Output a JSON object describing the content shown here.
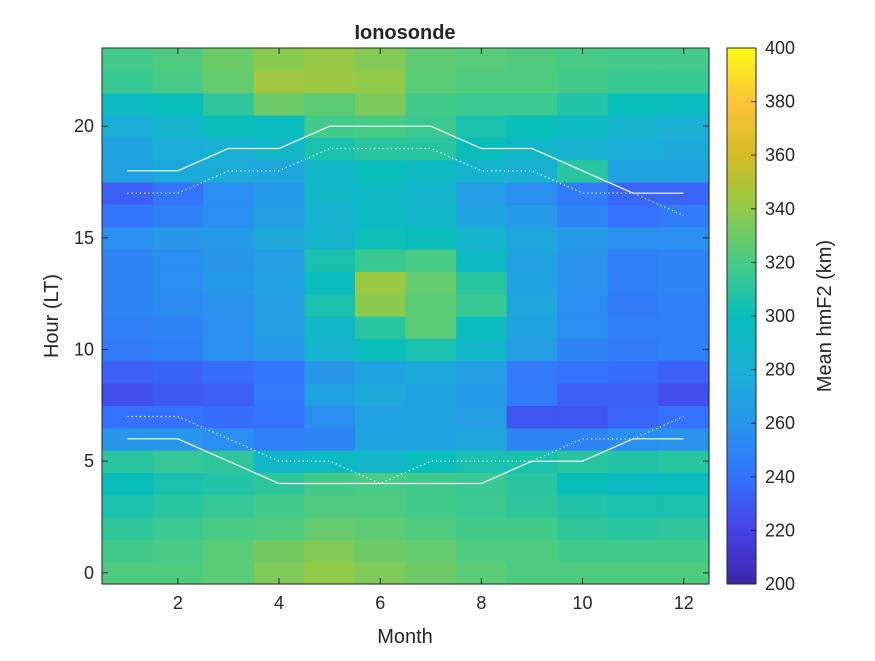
{
  "chart_data": {
    "type": "heatmap",
    "title": "Ionosonde",
    "xlabel": "Month",
    "ylabel": "Hour (LT)",
    "colorbar_label": "Mean hmF2 (km)",
    "xlim": [
      0.5,
      12.5
    ],
    "ylim": [
      -0.5,
      23.5
    ],
    "xticks": [
      2,
      4,
      6,
      8,
      10,
      12
    ],
    "yticks": [
      0,
      5,
      10,
      15,
      20
    ],
    "clim": [
      200,
      400
    ],
    "colorbar_ticks": [
      200,
      220,
      240,
      260,
      280,
      300,
      320,
      340,
      360,
      380,
      400
    ],
    "colormap": "parula",
    "months": [
      1,
      2,
      3,
      4,
      5,
      6,
      7,
      8,
      9,
      10,
      11,
      12
    ],
    "hours": [
      0,
      1,
      2,
      3,
      4,
      5,
      6,
      7,
      8,
      9,
      10,
      11,
      12,
      13,
      14,
      15,
      16,
      17,
      18,
      19,
      20,
      21,
      22,
      23
    ],
    "values": [
      [
        322,
        322,
        325,
        335,
        340,
        335,
        330,
        325,
        322,
        322,
        322,
        322
      ],
      [
        318,
        320,
        325,
        332,
        336,
        330,
        328,
        322,
        322,
        318,
        318,
        318
      ],
      [
        312,
        316,
        320,
        322,
        328,
        326,
        322,
        318,
        318,
        312,
        310,
        312
      ],
      [
        305,
        310,
        314,
        318,
        322,
        322,
        318,
        316,
        312,
        308,
        305,
        305
      ],
      [
        300,
        305,
        308,
        312,
        318,
        320,
        318,
        315,
        310,
        300,
        295,
        298
      ],
      [
        310,
        314,
        312,
        290,
        295,
        290,
        300,
        305,
        306,
        310,
        308,
        310
      ],
      [
        260,
        260,
        255,
        248,
        250,
        270,
        270,
        272,
        250,
        250,
        255,
        258
      ],
      [
        240,
        240,
        238,
        240,
        255,
        268,
        270,
        265,
        228,
        228,
        235,
        240
      ],
      [
        225,
        230,
        232,
        244,
        268,
        275,
        270,
        262,
        245,
        232,
        232,
        225
      ],
      [
        232,
        234,
        238,
        242,
        260,
        270,
        275,
        265,
        244,
        240,
        238,
        232
      ],
      [
        245,
        248,
        256,
        262,
        285,
        300,
        305,
        290,
        265,
        250,
        245,
        248
      ],
      [
        248,
        250,
        256,
        266,
        290,
        310,
        325,
        298,
        270,
        255,
        248,
        248
      ],
      [
        250,
        254,
        258,
        266,
        305,
        338,
        325,
        315,
        272,
        255,
        245,
        248
      ],
      [
        250,
        255,
        262,
        268,
        298,
        343,
        328,
        310,
        270,
        258,
        248,
        250
      ],
      [
        250,
        255,
        260,
        266,
        305,
        315,
        320,
        295,
        268,
        258,
        248,
        250
      ],
      [
        255,
        260,
        262,
        275,
        285,
        302,
        300,
        285,
        272,
        262,
        255,
        255
      ],
      [
        242,
        248,
        255,
        265,
        285,
        292,
        290,
        270,
        262,
        250,
        240,
        245
      ],
      [
        232,
        242,
        255,
        262,
        290,
        293,
        288,
        265,
        255,
        245,
        235,
        235
      ],
      [
        268,
        274,
        276,
        272,
        290,
        300,
        295,
        285,
        280,
        310,
        270,
        270
      ],
      [
        270,
        278,
        280,
        290,
        305,
        310,
        310,
        300,
        290,
        285,
        278,
        275
      ],
      [
        278,
        286,
        300,
        298,
        318,
        320,
        316,
        305,
        300,
        295,
        285,
        280
      ],
      [
        295,
        300,
        312,
        330,
        325,
        334,
        318,
        316,
        316,
        308,
        300,
        298
      ],
      [
        315,
        320,
        328,
        345,
        343,
        340,
        325,
        322,
        322,
        318,
        315,
        315
      ],
      [
        318,
        322,
        330,
        338,
        342,
        336,
        326,
        324,
        322,
        320,
        318,
        318
      ]
    ],
    "overlay_lines": [
      {
        "style": "solid",
        "color": "#ffffff",
        "x": [
          1,
          2,
          3,
          4,
          5,
          6,
          7,
          8,
          9,
          10,
          11,
          12
        ],
        "y": [
          18,
          18,
          19,
          19,
          20,
          20,
          20,
          19,
          19,
          18,
          17,
          17
        ]
      },
      {
        "style": "dotted",
        "color": "#ffffff",
        "x": [
          1,
          2,
          3,
          4,
          5,
          6,
          7,
          8,
          9,
          10,
          11,
          12
        ],
        "y": [
          17,
          17,
          18,
          18,
          19,
          19,
          19,
          18,
          18,
          17,
          17,
          16
        ]
      },
      {
        "style": "solid",
        "color": "#ffffff",
        "x": [
          1,
          2,
          3,
          4,
          5,
          6,
          7,
          8,
          9,
          10,
          11,
          12
        ],
        "y": [
          6,
          6,
          5,
          4,
          4,
          4,
          4,
          4,
          5,
          5,
          6,
          6
        ]
      },
      {
        "style": "dotted",
        "color": "#ffffff",
        "x": [
          1,
          2,
          3,
          4,
          5,
          6,
          7,
          8,
          9,
          10,
          11,
          12
        ],
        "y": [
          7,
          7,
          6,
          5,
          5,
          4,
          5,
          5,
          5,
          6,
          6,
          7
        ]
      }
    ]
  }
}
